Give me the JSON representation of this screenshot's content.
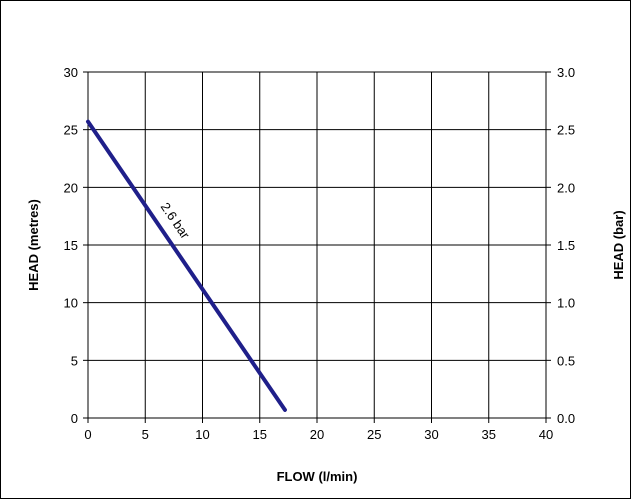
{
  "chart_data": {
    "type": "line",
    "xlabel": "FLOW (l/min)",
    "ylabel": "HEAD (metres)",
    "y2label": "HEAD (bar)",
    "xlim": [
      0,
      40
    ],
    "ylim": [
      0,
      30
    ],
    "y2lim": [
      0,
      3.0
    ],
    "x_ticks": [
      "0",
      "5",
      "10",
      "15",
      "20",
      "25",
      "30",
      "35",
      "40"
    ],
    "y_ticks": [
      "0",
      "5",
      "10",
      "15",
      "20",
      "25",
      "30"
    ],
    "y2_ticks": [
      "0.0",
      "0.5",
      "1.0",
      "1.5",
      "2.0",
      "2.5",
      "3.0"
    ],
    "grid": true,
    "series": [
      {
        "name": "2.6 bar",
        "color": "#1f1f8a",
        "x": [
          0,
          17.2
        ],
        "y": [
          25.7,
          0.7
        ]
      }
    ],
    "annotation": {
      "text": "2.6 bar",
      "x": 7.3,
      "y": 16.9
    }
  }
}
